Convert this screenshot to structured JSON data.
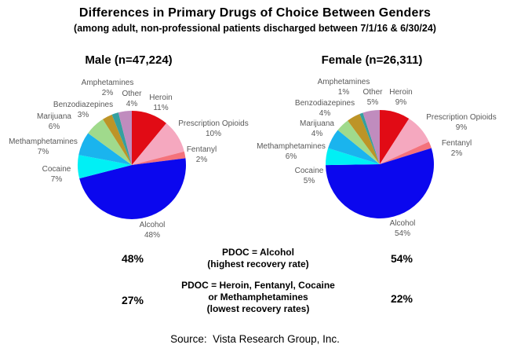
{
  "title": "Differences in Primary Drugs of Choice Between Genders",
  "subtitle": "(among adult, non-professional patients discharged between 7/1/16 & 6/30/24)",
  "source": "Source:  Vista Research Group, Inc.",
  "unit": "%",
  "palette": {
    "Heroin": "#e10b15",
    "Prescription Opioids": "#f5a8bf",
    "Fentanyl": "#f4727b",
    "Alcohol": "#0b07ee",
    "Cocaine": "#00f0f5",
    "Methamphetamines": "#1ab4ee",
    "Marijuana": "#a0da8c",
    "Benzodiazepines": "#bd9427",
    "Amphetamines": "#35a0a0",
    "Other": "#c08cbe"
  },
  "chart_data": [
    {
      "type": "pie",
      "title": "Male (n=47,224)",
      "group": "Male",
      "n": "47,224",
      "categories": [
        "Heroin",
        "Prescription Opioids",
        "Fentanyl",
        "Alcohol",
        "Cocaine",
        "Methamphetamines",
        "Marijuana",
        "Benzodiazepines",
        "Amphetamines",
        "Other"
      ],
      "values": [
        11,
        10,
        2,
        48,
        7,
        7,
        6,
        3,
        2,
        4
      ],
      "start_angle": "12-oclock",
      "direction": "clockwise",
      "legend": "labels-around-pie"
    },
    {
      "type": "pie",
      "title": "Female (n=26,311)",
      "group": "Female",
      "n": "26,311",
      "categories": [
        "Heroin",
        "Prescription Opioids",
        "Fentanyl",
        "Alcohol",
        "Cocaine",
        "Methamphetamines",
        "Marijuana",
        "Benzodiazepines",
        "Amphetamines",
        "Other"
      ],
      "values": [
        9,
        9,
        2,
        54,
        5,
        6,
        4,
        4,
        1,
        5
      ],
      "start_angle": "12-oclock",
      "direction": "clockwise",
      "legend": "labels-around-pie"
    }
  ],
  "annotations": {
    "rows": [
      {
        "male_value": "48%",
        "label_lines": [
          "PDOC = Alcohol",
          "(highest recovery rate)"
        ],
        "female_value": "54%"
      },
      {
        "male_value": "27%",
        "label_lines": [
          "PDOC = Heroin, Fentanyl, Cocaine",
          "or Methamphetamines",
          "(lowest recovery rates)"
        ],
        "female_value": "22%"
      }
    ]
  }
}
